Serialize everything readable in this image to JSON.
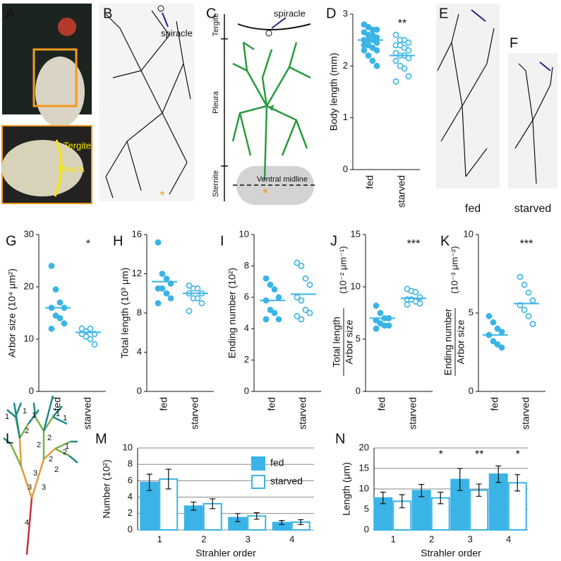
{
  "panel_labels": [
    "A",
    "B",
    "C",
    "D",
    "E",
    "F",
    "G",
    "H",
    "I",
    "J",
    "K",
    "L",
    "M",
    "N"
  ],
  "panel_a": {
    "tergite": "Tergite",
    "pleura": "Pleura"
  },
  "panel_b": {
    "spiracle": "spiracle",
    "star": "*"
  },
  "panel_c": {
    "tergite": "Tergite",
    "spiracle": "spiracle",
    "pleura": "Pleura",
    "sternite": "Sternite",
    "midline": "Ventral midline",
    "star": "*"
  },
  "panel_e": {
    "label": "fed"
  },
  "panel_f": {
    "label": "starved"
  },
  "panel_l": {
    "orders": [
      "1",
      "1",
      "1",
      "1",
      "1",
      "2",
      "2",
      "2",
      "2",
      "3",
      "2",
      "2",
      "1",
      "3",
      "3",
      "4"
    ]
  },
  "chart_data": [
    {
      "type": "strip",
      "ylabel": "Body length (mm)",
      "categories": [
        "fed",
        "starved"
      ],
      "ylim": [
        0,
        3
      ],
      "yticks": [
        0,
        1,
        2,
        3
      ],
      "annotation": "**",
      "groups": [
        {
          "marker": "filled",
          "color": "#3ab4e6",
          "values": [
            2.8,
            2.75,
            2.7,
            2.7,
            2.65,
            2.6,
            2.6,
            2.55,
            2.5,
            2.5,
            2.5,
            2.45,
            2.4,
            2.4,
            2.35,
            2.3,
            2.3,
            2.2,
            2.1,
            2.0
          ],
          "mean": 2.5
        },
        {
          "marker": "open",
          "color": "#3ab4e6",
          "values": [
            2.6,
            2.5,
            2.5,
            2.45,
            2.4,
            2.4,
            2.35,
            2.3,
            2.25,
            2.2,
            2.2,
            2.15,
            2.1,
            2.0,
            1.95,
            1.8,
            1.7
          ],
          "mean": 2.2
        }
      ]
    },
    {
      "type": "strip",
      "ylabel": "Arbor size (10⁴ μm²)",
      "categories": [
        "fed",
        "starved"
      ],
      "ylim": [
        0,
        30
      ],
      "yticks": [
        0,
        10,
        20,
        30
      ],
      "annotation": "*",
      "groups": [
        {
          "marker": "filled",
          "color": "#3ab4e6",
          "values": [
            24,
            19.5,
            17,
            16,
            16,
            14.5,
            14,
            13,
            12
          ],
          "mean": 16
        },
        {
          "marker": "open",
          "color": "#3ab4e6",
          "values": [
            12,
            11.5,
            12,
            11,
            11,
            10.5,
            10,
            9
          ],
          "mean": 11.3
        }
      ]
    },
    {
      "type": "strip",
      "ylabel": "Total length (10³ μm)",
      "categories": [
        "fed",
        "starved"
      ],
      "ylim": [
        0,
        16
      ],
      "yticks": [
        0,
        4,
        8,
        12,
        16
      ],
      "groups": [
        {
          "marker": "filled",
          "color": "#3ab4e6",
          "values": [
            15.2,
            12,
            11.5,
            11,
            10.5,
            10.5,
            10,
            9.5,
            9
          ],
          "mean": 11.2
        },
        {
          "marker": "open",
          "color": "#3ab4e6",
          "values": [
            10.8,
            10.5,
            10.5,
            10,
            10,
            9.5,
            9.5,
            9,
            8.2
          ],
          "mean": 10
        }
      ]
    },
    {
      "type": "strip",
      "ylabel": "Ending number (10²)",
      "categories": [
        "fed",
        "starved"
      ],
      "ylim": [
        0,
        10
      ],
      "yticks": [
        0,
        2,
        4,
        6,
        8,
        10
      ],
      "groups": [
        {
          "marker": "filled",
          "color": "#3ab4e6",
          "values": [
            7.2,
            6.8,
            6.5,
            6,
            5.8,
            5.2,
            5,
            4.6,
            4.6
          ],
          "mean": 5.8
        },
        {
          "marker": "open",
          "color": "#3ab4e6",
          "values": [
            8.2,
            8,
            7.2,
            6.8,
            6,
            5.8,
            5.2,
            5,
            4.8,
            4.6
          ],
          "mean": 6.2
        }
      ]
    },
    {
      "type": "strip",
      "ylabel_lines": [
        "Total length",
        "Arbor size"
      ],
      "ylabel_unit": "(10⁻² μm⁻¹)",
      "categories": [
        "fed",
        "starved"
      ],
      "ylim": [
        0,
        15
      ],
      "yticks": [
        0,
        5,
        10,
        15
      ],
      "annotation": "***",
      "groups": [
        {
          "marker": "filled",
          "color": "#3ab4e6",
          "values": [
            8.2,
            7.5,
            7,
            7,
            6.8,
            6.5,
            6.3,
            6.3,
            6
          ],
          "mean": 7
        },
        {
          "marker": "open",
          "color": "#3ab4e6",
          "values": [
            9.8,
            9.6,
            9.5,
            9,
            8.8,
            8.8,
            8.6,
            8.4,
            8.3
          ],
          "mean": 8.9
        }
      ]
    },
    {
      "type": "strip",
      "ylabel_lines": [
        "Ending number",
        "Arbor size"
      ],
      "ylabel_unit": "(10⁻³ μm⁻²)",
      "categories": [
        "fed",
        "starved"
      ],
      "ylim": [
        0,
        10
      ],
      "yticks": [
        0,
        5,
        10
      ],
      "annotation": "***",
      "groups": [
        {
          "marker": "filled",
          "color": "#3ab4e6",
          "values": [
            4.8,
            4.4,
            4,
            3.8,
            3.6,
            3.2,
            3,
            2.8
          ],
          "mean": 3.6
        },
        {
          "marker": "open",
          "color": "#3ab4e6",
          "values": [
            7.3,
            6.8,
            6.3,
            5.8,
            5.5,
            5.2,
            4.8,
            4.3
          ],
          "mean": 5.6
        }
      ]
    },
    {
      "type": "bar",
      "ylabel": "Number (10²)",
      "xlabel": "Strahler order",
      "categories": [
        "1",
        "2",
        "3",
        "4"
      ],
      "ylim": [
        0,
        10
      ],
      "yticks": [
        0,
        2,
        4,
        6,
        8,
        10
      ],
      "grid": true,
      "legend": "upper right",
      "series": [
        {
          "name": "fed",
          "color": "#3ab4e6",
          "filled": true,
          "values": [
            5.8,
            2.9,
            1.5,
            0.9
          ],
          "errors": [
            1.0,
            0.5,
            0.5,
            0.25
          ]
        },
        {
          "name": "starved",
          "color": "#3ab4e6",
          "filled": false,
          "values": [
            6.2,
            3.2,
            1.7,
            0.95
          ],
          "errors": [
            1.2,
            0.6,
            0.4,
            0.3
          ]
        }
      ]
    },
    {
      "type": "bar",
      "ylabel": "Length (μm)",
      "xlabel": "Strahler order",
      "categories": [
        "1",
        "2",
        "3",
        "4"
      ],
      "ylim": [
        0,
        20
      ],
      "yticks": [
        0,
        5,
        10,
        15,
        20
      ],
      "grid": true,
      "significance": [
        null,
        "*",
        "**",
        "*"
      ],
      "series": [
        {
          "name": "fed",
          "color": "#3ab4e6",
          "filled": true,
          "values": [
            7.8,
            9.6,
            12.3,
            13.6
          ],
          "errors": [
            1.4,
            1.5,
            2.7,
            2
          ]
        },
        {
          "name": "starved",
          "color": "#3ab4e6",
          "filled": false,
          "values": [
            7,
            7.8,
            9.7,
            11.5
          ],
          "errors": [
            1.6,
            1.4,
            1.5,
            2
          ]
        }
      ]
    }
  ]
}
